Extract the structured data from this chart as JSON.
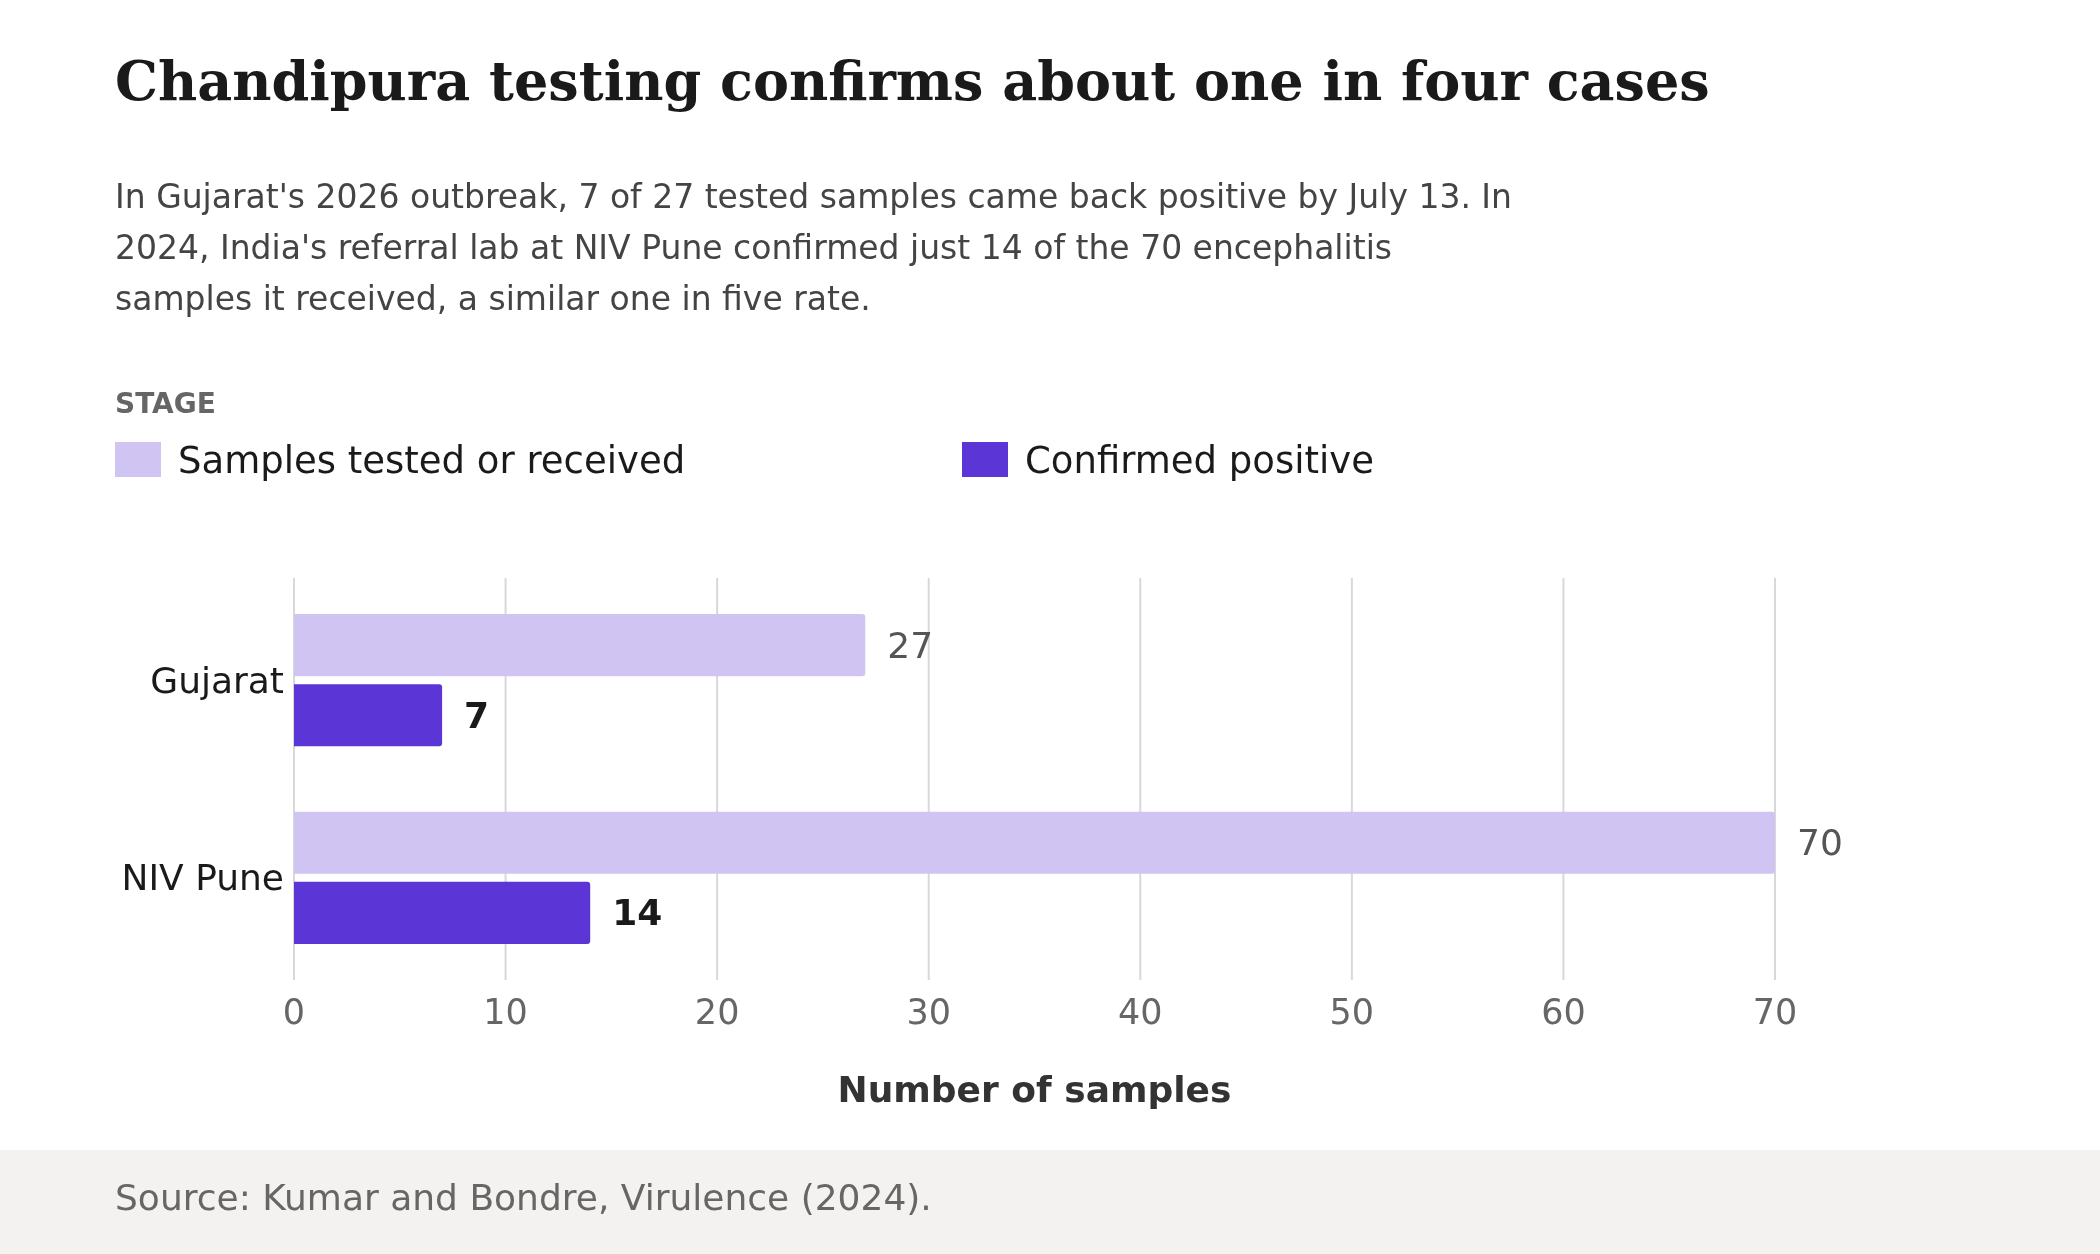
{
  "chart_data": {
    "type": "bar",
    "orientation": "horizontal",
    "title": "Chandipura testing confirms about one in four cases",
    "subtitle": "In Gujarat's 2026 outbreak, 7 of 27 tested samples came back positive by July 13. In 2024, India's referral lab at NIV Pune confirmed just 14 of the 70 encephalitis samples it received, a similar one in five rate.",
    "legend_title": "STAGE",
    "xlabel": "Number of samples",
    "categories": [
      "Gujarat",
      "NIV Pune"
    ],
    "series": [
      {
        "name": "Samples tested or received",
        "color": "#d0c5f2",
        "values": [
          27,
          70
        ]
      },
      {
        "name": "Confirmed positive",
        "color": "#5b35d5",
        "values": [
          7,
          14
        ]
      }
    ],
    "xlim": [
      0,
      70
    ],
    "xticks": [
      0,
      10,
      20,
      30,
      40,
      50,
      60,
      70
    ],
    "grid": "x",
    "legend": "top left",
    "data_labels": true,
    "annotations": [
      "Source: Kumar and Bondre, Virulence (2024)."
    ]
  }
}
